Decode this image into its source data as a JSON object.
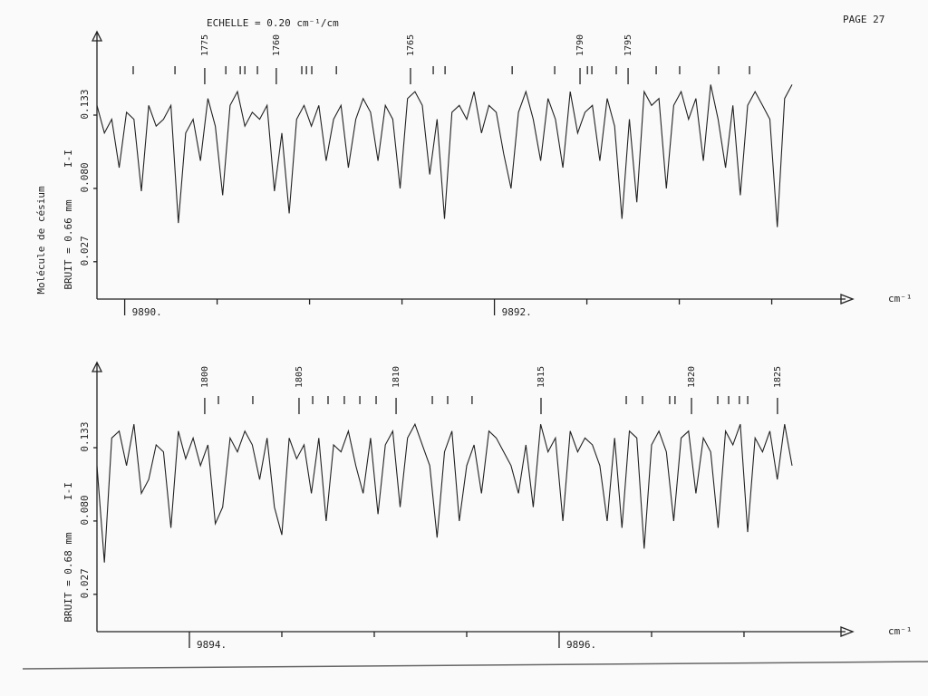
{
  "header": {
    "scale": "ECHELLE = 0.20 cm⁻¹/cm",
    "page": "PAGE 27"
  },
  "side_label": "Molécule de césium",
  "chart_data": [
    {
      "type": "line",
      "noise_label": "BRUIT = 0.66 mm",
      "y_label": "I-I",
      "x_label": "cm⁻¹",
      "color": "#222222",
      "xlim": [
        9889.85,
        9893.86
      ],
      "ylim": [
        0,
        0.19
      ],
      "xticks": [
        {
          "value": 9890,
          "label": "9890."
        },
        {
          "value": 9892,
          "label": "9892."
        }
      ],
      "xminor": [
        9890.5,
        9891,
        9891.5,
        9892.5,
        9893,
        9893.5
      ],
      "yticks": [
        0.027,
        {
          "value": 0.08,
          "label": "0.080"
        },
        0.133
      ],
      "annotations": [
        {
          "x": 9890.433,
          "label": "1775"
        },
        {
          "x": 9890.82,
          "label": "1760"
        },
        {
          "x": 9891.546,
          "label": "1765"
        },
        {
          "x": 9892.463,
          "label": "1790"
        },
        {
          "x": 9892.723,
          "label": "1795"
        }
      ],
      "line_markers": [
        9890.046,
        9890.272,
        9890.547,
        9890.625,
        9890.65,
        9890.718,
        9890.958,
        9890.983,
        9891.012,
        9891.145,
        9891.669,
        9891.733,
        9892.096,
        9892.326,
        9892.503,
        9892.527,
        9892.659,
        9892.875,
        9893.002,
        9893.213,
        9893.38
      ],
      "x": [
        9889.85,
        9889.89,
        9889.93,
        9889.97,
        9890.01,
        9890.05,
        9890.09,
        9890.13,
        9890.17,
        9890.21,
        9890.25,
        9890.29,
        9890.33,
        9890.37,
        9890.41,
        9890.45,
        9890.49,
        9890.53,
        9890.57,
        9890.61,
        9890.65,
        9890.69,
        9890.73,
        9890.77,
        9890.81,
        9890.85,
        9890.89,
        9890.93,
        9890.97,
        9891.01,
        9891.05,
        9891.09,
        9891.13,
        9891.17,
        9891.21,
        9891.25,
        9891.29,
        9891.33,
        9891.37,
        9891.41,
        9891.45,
        9891.49,
        9891.53,
        9891.57,
        9891.61,
        9891.65,
        9891.69,
        9891.73,
        9891.77,
        9891.81,
        9891.85,
        9891.89,
        9891.93,
        9891.97,
        9892.01,
        9892.05,
        9892.09,
        9892.13,
        9892.17,
        9892.21,
        9892.25,
        9892.29,
        9892.33,
        9892.37,
        9892.41,
        9892.45,
        9892.49,
        9892.53,
        9892.57,
        9892.61,
        9892.65,
        9892.69,
        9892.73,
        9892.77,
        9892.81,
        9892.85,
        9892.89,
        9892.93,
        9892.97,
        9893.01,
        9893.05,
        9893.09,
        9893.13,
        9893.17,
        9893.21,
        9893.25,
        9893.29,
        9893.33,
        9893.37,
        9893.41,
        9893.45,
        9893.49,
        9893.53,
        9893.57,
        9893.61
      ],
      "values": [
        0.14,
        0.12,
        0.13,
        0.095,
        0.135,
        0.13,
        0.078,
        0.14,
        0.125,
        0.13,
        0.14,
        0.055,
        0.12,
        0.13,
        0.1,
        0.145,
        0.125,
        0.075,
        0.14,
        0.15,
        0.125,
        0.135,
        0.13,
        0.14,
        0.078,
        0.12,
        0.062,
        0.13,
        0.14,
        0.125,
        0.14,
        0.1,
        0.13,
        0.14,
        0.095,
        0.13,
        0.145,
        0.135,
        0.1,
        0.14,
        0.13,
        0.08,
        0.145,
        0.15,
        0.14,
        0.09,
        0.13,
        0.058,
        0.135,
        0.14,
        0.13,
        0.15,
        0.12,
        0.14,
        0.135,
        0.105,
        0.08,
        0.135,
        0.15,
        0.13,
        0.1,
        0.145,
        0.13,
        0.095,
        0.15,
        0.12,
        0.135,
        0.14,
        0.1,
        0.145,
        0.125,
        0.058,
        0.13,
        0.07,
        0.15,
        0.14,
        0.145,
        0.08,
        0.14,
        0.15,
        0.13,
        0.145,
        0.1,
        0.155,
        0.13,
        0.095,
        0.14,
        0.075,
        0.14,
        0.15,
        0.14,
        0.13,
        0.052,
        0.145,
        0.155
      ]
    },
    {
      "type": "line",
      "noise_label": "BRUIT = 0.68 mm",
      "y_label": "I-I",
      "x_label": "cm⁻¹",
      "color": "#222222",
      "xlim": [
        9893.5,
        9897.51
      ],
      "ylim": [
        0,
        0.19
      ],
      "xticks": [
        {
          "value": 9894,
          "label": "9894."
        },
        {
          "value": 9896,
          "label": "9896."
        }
      ],
      "xminor": [
        9894.5,
        9895,
        9895.5,
        9896.5,
        9897
      ],
      "yticks": [
        0.027,
        {
          "value": 0.08,
          "label": "0.080"
        },
        0.133
      ],
      "annotations": [
        {
          "x": 9894.083,
          "label": "1800"
        },
        {
          "x": 9894.593,
          "label": "1805"
        },
        {
          "x": 9895.118,
          "label": "1810"
        },
        {
          "x": 9895.902,
          "label": "1815"
        },
        {
          "x": 9896.716,
          "label": "1820"
        },
        {
          "x": 9897.181,
          "label": "1825"
        }
      ],
      "line_markers": [
        9894.157,
        9894.343,
        9894.667,
        9894.75,
        9894.838,
        9894.922,
        9895.01,
        9895.314,
        9895.397,
        9895.529,
        9896.363,
        9896.451,
        9896.598,
        9896.627,
        9896.858,
        9896.917,
        9896.975,
        9897.02
      ],
      "x": [
        9893.5,
        9893.54,
        9893.58,
        9893.62,
        9893.66,
        9893.7,
        9893.74,
        9893.78,
        9893.82,
        9893.86,
        9893.9,
        9893.94,
        9893.98,
        9894.02,
        9894.06,
        9894.1,
        9894.14,
        9894.18,
        9894.22,
        9894.26,
        9894.3,
        9894.34,
        9894.38,
        9894.42,
        9894.46,
        9894.5,
        9894.54,
        9894.58,
        9894.62,
        9894.66,
        9894.7,
        9894.74,
        9894.78,
        9894.82,
        9894.86,
        9894.9,
        9894.94,
        9894.98,
        9895.02,
        9895.06,
        9895.1,
        9895.14,
        9895.18,
        9895.22,
        9895.26,
        9895.3,
        9895.34,
        9895.38,
        9895.42,
        9895.46,
        9895.5,
        9895.54,
        9895.58,
        9895.62,
        9895.66,
        9895.7,
        9895.74,
        9895.78,
        9895.82,
        9895.86,
        9895.9,
        9895.94,
        9895.98,
        9896.02,
        9896.06,
        9896.1,
        9896.14,
        9896.18,
        9896.22,
        9896.26,
        9896.3,
        9896.34,
        9896.38,
        9896.42,
        9896.46,
        9896.5,
        9896.54,
        9896.58,
        9896.62,
        9896.66,
        9896.7,
        9896.74,
        9896.78,
        9896.82,
        9896.86,
        9896.9,
        9896.94,
        9896.98,
        9897.02,
        9897.06,
        9897.1,
        9897.14,
        9897.18,
        9897.22,
        9897.26
      ],
      "values": [
        0.12,
        0.05,
        0.14,
        0.145,
        0.12,
        0.15,
        0.1,
        0.11,
        0.135,
        0.13,
        0.075,
        0.145,
        0.125,
        0.14,
        0.12,
        0.135,
        0.078,
        0.09,
        0.14,
        0.13,
        0.145,
        0.135,
        0.11,
        0.14,
        0.09,
        0.07,
        0.14,
        0.125,
        0.135,
        0.1,
        0.14,
        0.08,
        0.135,
        0.13,
        0.145,
        0.12,
        0.1,
        0.14,
        0.085,
        0.135,
        0.145,
        0.09,
        0.14,
        0.15,
        0.135,
        0.12,
        0.068,
        0.13,
        0.145,
        0.08,
        0.12,
        0.135,
        0.1,
        0.145,
        0.14,
        0.13,
        0.12,
        0.1,
        0.135,
        0.09,
        0.15,
        0.13,
        0.14,
        0.08,
        0.145,
        0.13,
        0.14,
        0.135,
        0.12,
        0.08,
        0.14,
        0.075,
        0.145,
        0.14,
        0.06,
        0.135,
        0.145,
        0.13,
        0.08,
        0.14,
        0.145,
        0.1,
        0.14,
        0.13,
        0.075,
        0.145,
        0.135,
        0.15,
        0.072,
        0.14,
        0.13,
        0.145,
        0.11,
        0.15,
        0.12
      ]
    }
  ]
}
